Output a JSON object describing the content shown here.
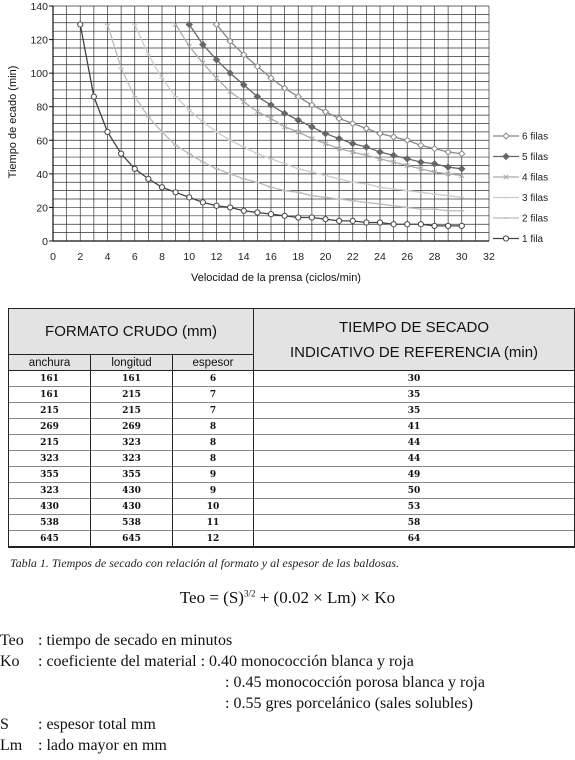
{
  "chart_data": {
    "type": "line",
    "xlabel": "Velocidad de la prensa (ciclos/min)",
    "ylabel": "Tiempo de  ecado (min)",
    "xlim": [
      0,
      32
    ],
    "ylim": [
      0,
      140
    ],
    "x_ticks": [
      "0",
      "2",
      "4",
      "6",
      "8",
      "10",
      "12",
      "14",
      "16",
      "18",
      "20",
      "22",
      "24",
      "26",
      "28",
      "30",
      "32"
    ],
    "y_ticks": [
      "0",
      "20",
      "40",
      "60",
      "80",
      "100",
      "120",
      "140"
    ],
    "grid": true,
    "legend_position": "right",
    "series": [
      {
        "name": "6 filas",
        "marker": "diamond-open",
        "color": "#888888",
        "x": [
          12,
          13,
          14,
          15,
          16,
          17,
          18,
          19,
          20,
          21,
          22,
          23,
          24,
          25,
          26,
          27,
          28,
          29,
          30
        ],
        "y": [
          129,
          119,
          111,
          104,
          97,
          91,
          86,
          81,
          77,
          73,
          70,
          67,
          64,
          62,
          60,
          57,
          55,
          53,
          52
        ]
      },
      {
        "name": "5 filas",
        "marker": "diamond-filled",
        "color": "#666666",
        "x": [
          10,
          11,
          12,
          13,
          14,
          15,
          16,
          17,
          18,
          19,
          20,
          21,
          22,
          23,
          24,
          25,
          26,
          27,
          28,
          29,
          30
        ],
        "y": [
          129,
          117,
          108,
          100,
          93,
          86,
          81,
          76,
          72,
          68,
          64,
          61,
          58,
          56,
          53,
          51,
          49,
          47,
          46,
          44,
          43
        ]
      },
      {
        "name": "4 filas",
        "marker": "x",
        "color": "#aaaaaa",
        "x": [
          9,
          10,
          11,
          12,
          13,
          14,
          15,
          16,
          17,
          18,
          19,
          20,
          21,
          22,
          23,
          24,
          25,
          26,
          27,
          28,
          29,
          30
        ],
        "y": [
          129,
          116,
          106,
          97,
          89,
          83,
          77,
          73,
          68,
          65,
          61,
          58,
          55,
          53,
          51,
          49,
          47,
          45,
          43,
          41,
          40,
          39
        ]
      },
      {
        "name": "3 filas",
        "marker": "dash",
        "color": "#cccccc",
        "x": [
          6,
          7,
          8,
          9,
          10,
          11,
          12,
          13,
          14,
          15,
          16,
          17,
          18,
          19,
          20,
          21,
          22,
          23,
          24,
          25,
          26,
          27,
          28,
          29,
          30
        ],
        "y": [
          129,
          111,
          97,
          86,
          78,
          71,
          65,
          60,
          56,
          52,
          49,
          46,
          43,
          41,
          39,
          37,
          35,
          34,
          32,
          31,
          30,
          29,
          28,
          27,
          26
        ]
      },
      {
        "name": "2 filas",
        "marker": "dash",
        "color": "#bbbbbb",
        "x": [
          4,
          5,
          6,
          7,
          8,
          9,
          10,
          11,
          12,
          13,
          14,
          15,
          16,
          17,
          18,
          19,
          20,
          21,
          22,
          23,
          24,
          25,
          26,
          27,
          28,
          29,
          30
        ],
        "y": [
          129,
          103,
          86,
          74,
          65,
          57,
          52,
          47,
          43,
          40,
          37,
          35,
          32,
          30,
          29,
          27,
          26,
          25,
          24,
          23,
          22,
          21,
          20,
          19,
          19,
          18,
          18
        ]
      },
      {
        "name": "1 fila",
        "marker": "circle-open",
        "color": "#444444",
        "x": [
          2,
          3,
          4,
          5,
          6,
          7,
          8,
          9,
          10,
          11,
          12,
          13,
          14,
          15,
          16,
          17,
          18,
          19,
          20,
          21,
          22,
          23,
          24,
          25,
          26,
          27,
          28,
          29,
          30
        ],
        "y": [
          129,
          86,
          65,
          52,
          43,
          37,
          32,
          29,
          26,
          23,
          21,
          20,
          18,
          17,
          16,
          15,
          14,
          14,
          13,
          12,
          12,
          11,
          11,
          10,
          10,
          10,
          9,
          9,
          9
        ]
      }
    ]
  },
  "table": {
    "header_left": "FORMATO CRUDO (mm)",
    "header_right_1": "TIEMPO DE SECADO",
    "header_right_2": "INDICATIVO DE REFERENCIA (min)",
    "col_anchura": "anchura",
    "col_longitud": "longitud",
    "col_espesor": "espesor",
    "rows": [
      [
        "161",
        "161",
        "6",
        "30"
      ],
      [
        "161",
        "215",
        "7",
        "35"
      ],
      [
        "215",
        "215",
        "7",
        "35"
      ],
      [
        "269",
        "269",
        "8",
        "41"
      ],
      [
        "215",
        "323",
        "8",
        "44"
      ],
      [
        "323",
        "323",
        "8",
        "44"
      ],
      [
        "355",
        "355",
        "9",
        "49"
      ],
      [
        "323",
        "430",
        "9",
        "50"
      ],
      [
        "430",
        "430",
        "10",
        "53"
      ],
      [
        "538",
        "538",
        "11",
        "58"
      ],
      [
        "645",
        "645",
        "12",
        "64"
      ]
    ]
  },
  "caption": "Tabla 1. Tiempos de secado con relación al formato y al espesor de las baldosas.",
  "formula": {
    "left": "Teo = (S)",
    "exponent": "3/2",
    "right": " + (0.02 × Lm) × Ko"
  },
  "definitions": [
    {
      "sym": "Teo",
      "desc": ": tiempo de secado en minutos"
    },
    {
      "sym": "Ko",
      "desc": ": coeficiente del material : 0.40 monococción blanca y roja"
    },
    {
      "sym": "",
      "desc": ": 0.45 monococción porosa blanca y roja"
    },
    {
      "sym": "",
      "desc": ": 0.55 gres porcelánico (sales solubles)"
    },
    {
      "sym": "S",
      "desc": ": espesor total mm"
    },
    {
      "sym": "Lm",
      "desc": ": lado mayor en mm"
    }
  ]
}
